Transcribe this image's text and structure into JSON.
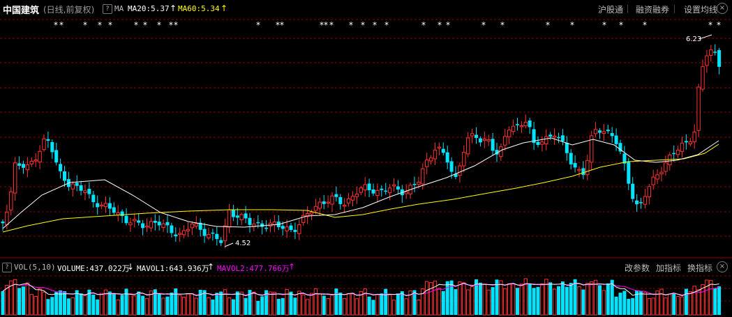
{
  "header": {
    "stock_name": "中国建筑",
    "period_mode": "(日线,前复权)",
    "help_glyph": "?",
    "ma_title": "MA",
    "ma20_label": "MA20:5.37",
    "ma20_arrow": "↑",
    "ma60_label": "MA60:5.34",
    "ma60_arrow": "↑",
    "buttons": [
      "沪股通",
      "融资融券",
      "设置均线"
    ],
    "close_glyph": "×"
  },
  "price_chart": {
    "type": "candlestick",
    "high_label": "6.23",
    "low_label": "4.52",
    "star_glyph": "*",
    "colors": {
      "up": "#ff3232",
      "down": "#00e4ff",
      "ma20": "#ffffff",
      "ma60": "#ffff00",
      "grid": "#8b0000"
    }
  },
  "volume_header": {
    "help_glyph": "?",
    "title": "VOL(5,10)",
    "volume_label": "VOLUME:437.022万",
    "volume_arrow": "↓",
    "mavol1_label": "MAVOL1:643.936万",
    "mavol1_arrow": "↑",
    "mavol2_label": "MAVOL2:477.766万",
    "mavol2_arrow": "↑",
    "buttons": [
      "改参数",
      "加指标",
      "换指标"
    ],
    "close_glyph": "×",
    "colors": {
      "mavol1": "#ffffff",
      "mavol2": "#ff00ff"
    }
  }
}
